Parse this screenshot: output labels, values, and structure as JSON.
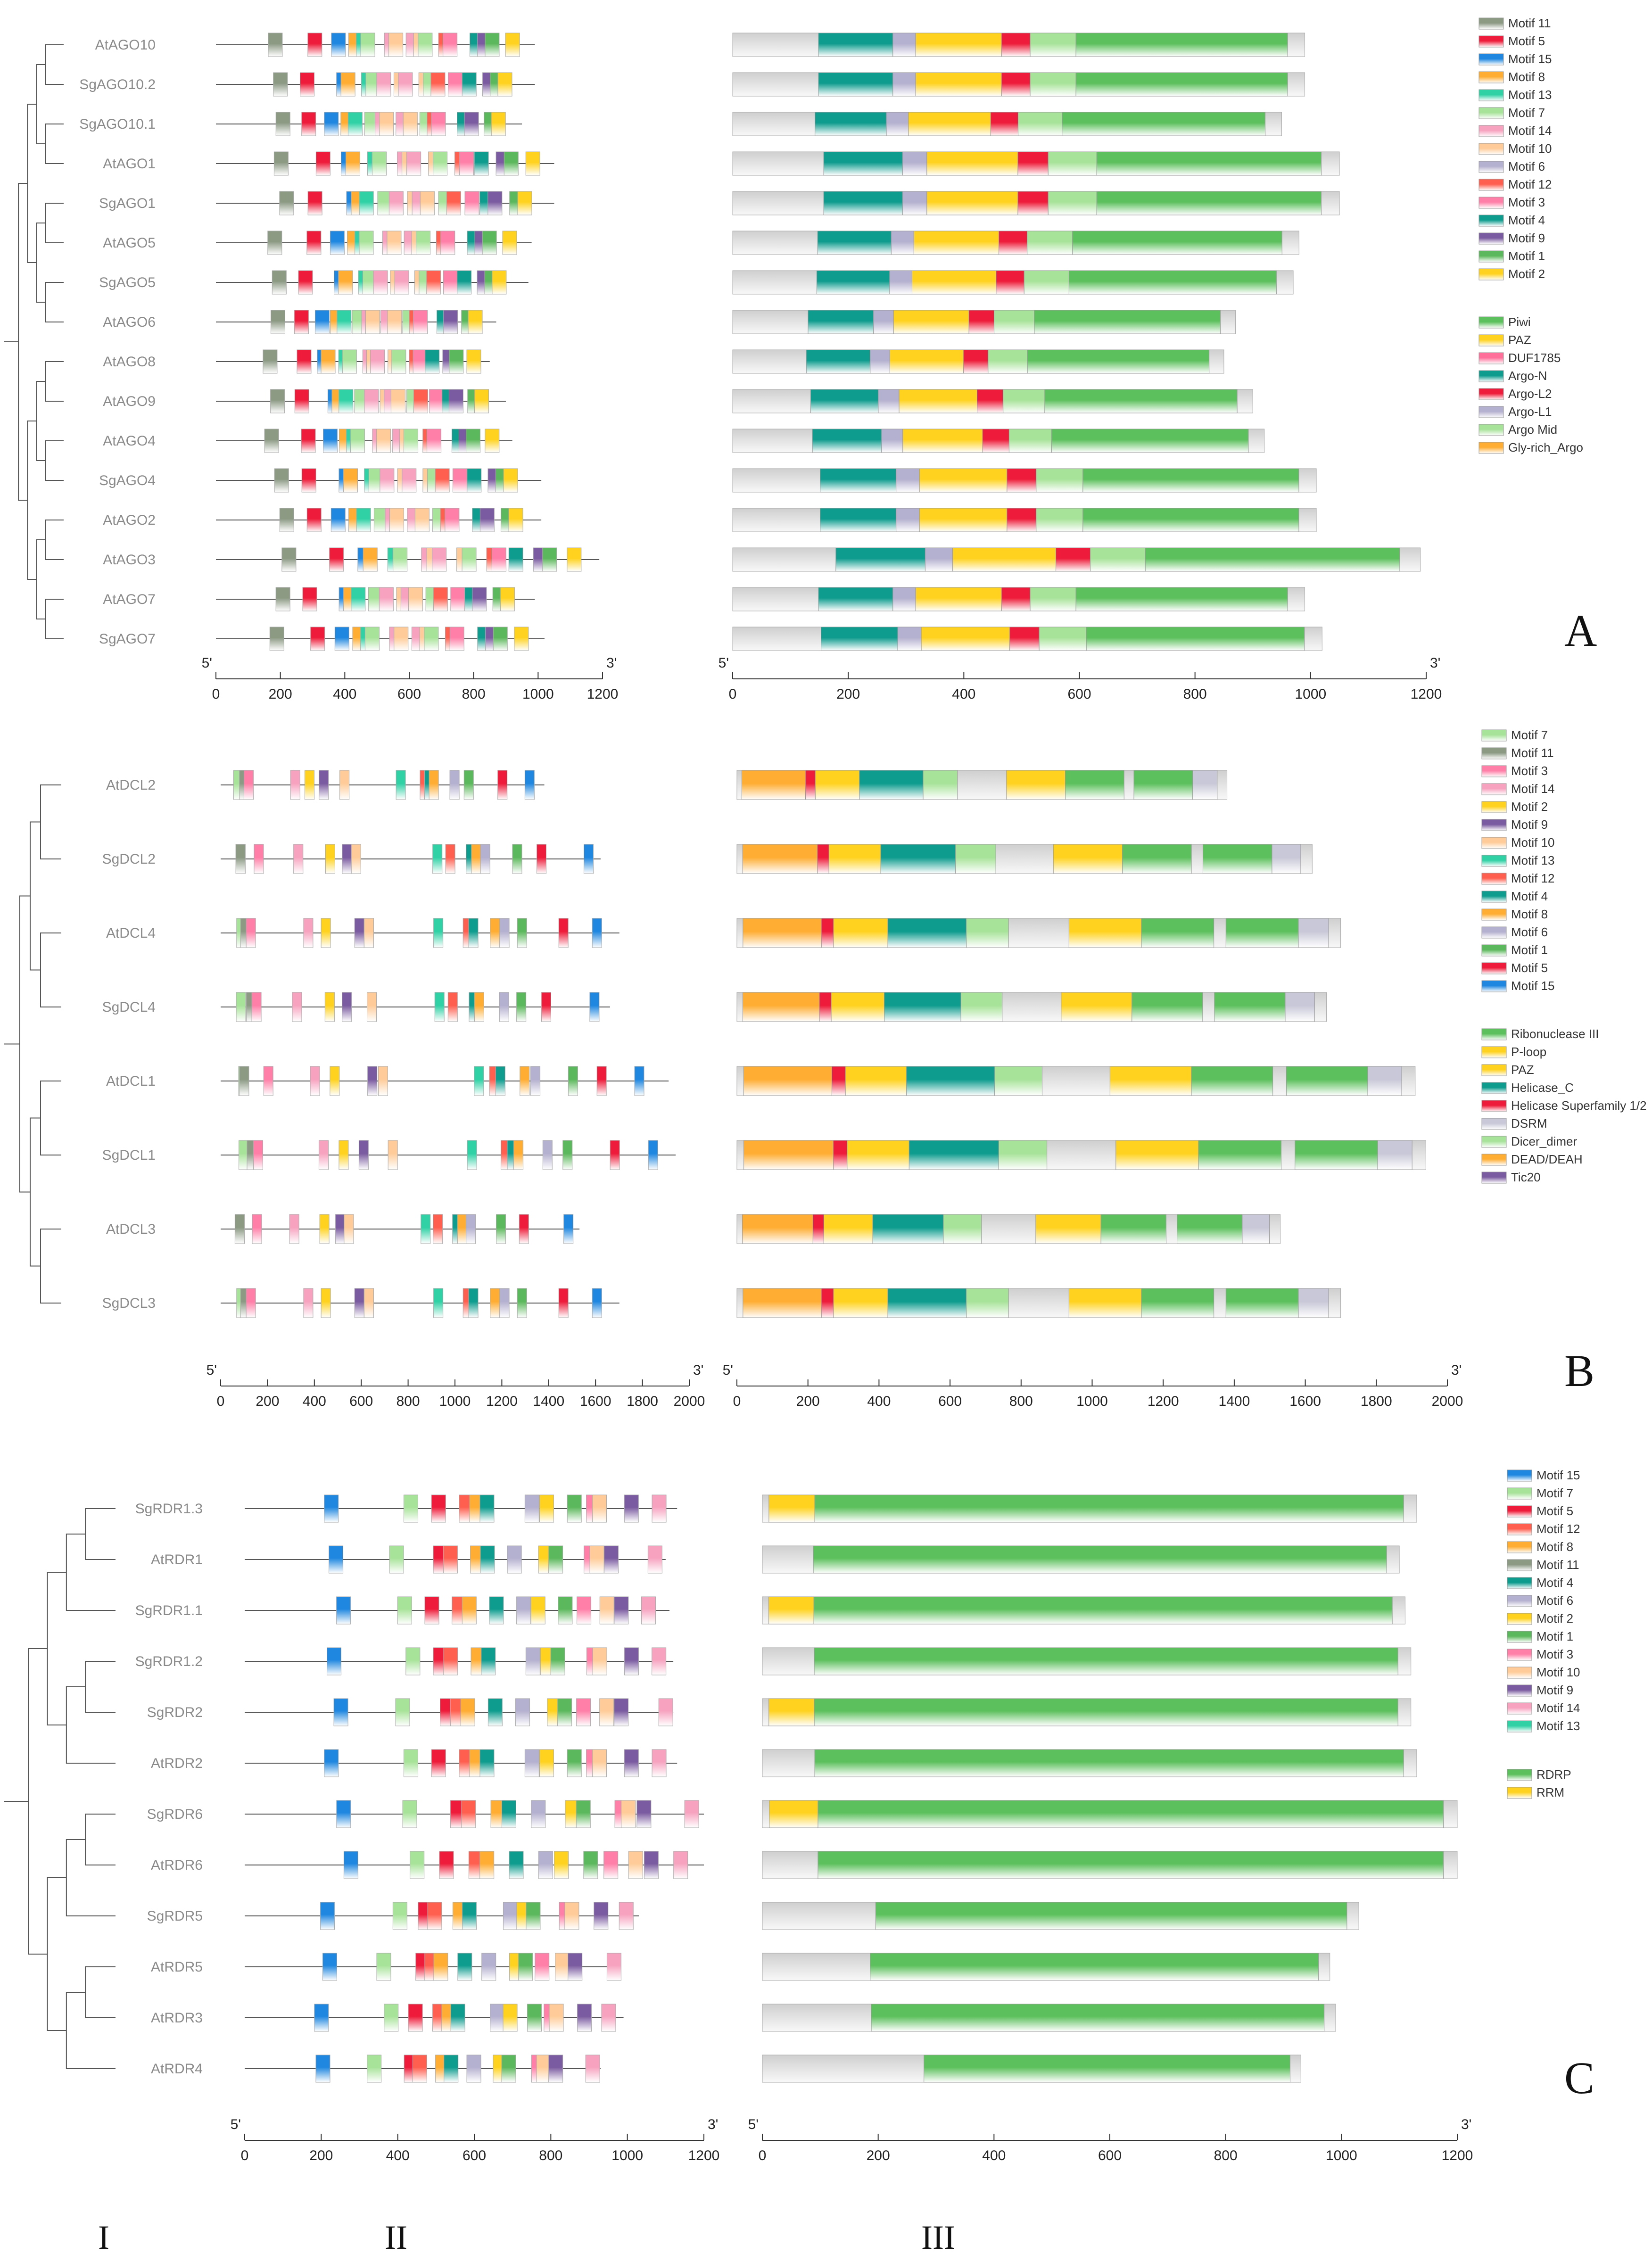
{
  "panels": [
    {
      "letter": "A",
      "genes": [
        "AtAGO10",
        "SgAGO10.2",
        "SgAGO10.1",
        "AtAGO1",
        "SgAGO1",
        "AtAGO5",
        "SgAGO5",
        "AtAGO6",
        "AtAGO8",
        "AtAGO9",
        "AtAGO4",
        "SgAGO4",
        "AtAGO2",
        "AtAGO3",
        "AtAGO7",
        "SgAGO7"
      ],
      "lengths": [
        990,
        990,
        950,
        1050,
        1050,
        980,
        970,
        870,
        850,
        900,
        920,
        1010,
        1010,
        1190,
        990,
        1020
      ],
      "axis_motif": {
        "max": 1200,
        "ticks": [
          "0",
          "200",
          "400",
          "600",
          "800",
          "1000",
          "1200"
        ],
        "start": "5'",
        "end": "3'"
      },
      "axis_domain": {
        "max": 1200,
        "ticks": [
          "0",
          "200",
          "400",
          "600",
          "800",
          "1000",
          "1200"
        ],
        "start": "5'",
        "end": "3'"
      },
      "motif_legend": [
        "Motif 11",
        "Motif 5",
        "Motif 15",
        "Motif 8",
        "Motif 13",
        "Motif 7",
        "Motif 14",
        "Motif 10",
        "Motif 6",
        "Motif 12",
        "Motif 3",
        "Motif 4",
        "Motif 9",
        "Motif 1",
        "Motif 2"
      ],
      "domain_legend": [
        "Piwi",
        "PAZ",
        "DUF1785",
        "Argo-N",
        "Argo-L2",
        "Argo-L1",
        "Argo Mid",
        "Gly-rich_Argo"
      ]
    },
    {
      "letter": "B",
      "genes": [
        "AtDCL2",
        "SgDCL2",
        "AtDCL4",
        "SgDCL4",
        "AtDCL1",
        "SgDCL1",
        "AtDCL3",
        "SgDCL3"
      ],
      "lengths": [
        1380,
        1620,
        1700,
        1660,
        1910,
        1940,
        1530,
        1700
      ],
      "axis_motif": {
        "max": 2000,
        "ticks": [
          "0",
          "200",
          "400",
          "600",
          "800",
          "1000",
          "1200",
          "1400",
          "1600",
          "1800",
          "2000"
        ],
        "start": "5'",
        "end": "3'"
      },
      "axis_domain": {
        "max": 2000,
        "ticks": [
          "0",
          "200",
          "400",
          "600",
          "800",
          "1000",
          "1200",
          "1400",
          "1600",
          "1800",
          "2000"
        ],
        "start": "5'",
        "end": "3'"
      },
      "motif_legend": [
        "Motif 7",
        "Motif 11",
        "Motif 3",
        "Motif 14",
        "Motif 2",
        "Motif 9",
        "Motif 10",
        "Motif 13",
        "Motif 12",
        "Motif 4",
        "Motif 8",
        "Motif 6",
        "Motif 1",
        "Motif 5",
        "Motif 15"
      ],
      "domain_legend": [
        "Ribonuclease III",
        "P-loop",
        "PAZ",
        "Helicase_C",
        "Helicase Superfamily 1/2",
        "DSRM",
        "Dicer_dimer",
        "DEAD/DEAH",
        "Tic20"
      ]
    },
    {
      "letter": "C",
      "genes": [
        "SgRDR1.3",
        "AtRDR1",
        "SgRDR1.1",
        "SgRDR1.2",
        "SgRDR2",
        "AtRDR2",
        "SgRDR6",
        "AtRDR6",
        "SgRDR5",
        "AtRDR5",
        "AtRDR3",
        "AtRDR4"
      ],
      "lengths": [
        1130,
        1100,
        1110,
        1120,
        1120,
        1130,
        1200,
        1200,
        1030,
        980,
        990,
        930
      ],
      "axis_motif": {
        "max": 1200,
        "ticks": [
          "0",
          "200",
          "400",
          "600",
          "800",
          "1000",
          "1200"
        ],
        "start": "5'",
        "end": "3'"
      },
      "axis_domain": {
        "max": 1200,
        "ticks": [
          "0",
          "200",
          "400",
          "600",
          "800",
          "1000",
          "1200"
        ],
        "start": "5'",
        "end": "3'"
      },
      "motif_legend": [
        "Motif 15",
        "Motif 7",
        "Motif 5",
        "Motif 12",
        "Motif 8",
        "Motif 11",
        "Motif 4",
        "Motif 6",
        "Motif 2",
        "Motif 1",
        "Motif 3",
        "Motif 10",
        "Motif 9",
        "Motif 14",
        "Motif 13"
      ],
      "domain_legend": [
        "RDRP",
        "RRM"
      ]
    }
  ],
  "column_labels": [
    "I",
    "II",
    "III"
  ],
  "colors": {
    "Motif 1": "#5cb85c",
    "Motif 2": "#ffd21f",
    "Motif 3": "#ff7fa8",
    "Motif 4": "#0e9c8e",
    "Motif 5": "#ee1c3a",
    "Motif 6": "#b4b0cf",
    "Motif 7": "#a8e39a",
    "Motif 8": "#ffad33",
    "Motif 9": "#7a5aa0",
    "Motif 10": "#ffcc99",
    "Motif 11": "#8c9a84",
    "Motif 12": "#ff5f4f",
    "Motif 13": "#2fd1a5",
    "Motif 14": "#f7a3c0",
    "Motif 15": "#1f87e0",
    "Piwi": "#5cc05c",
    "PAZ": "#ffd21f",
    "DUF1785": "#ff6f9a",
    "Argo-N": "#0e9c8e",
    "Argo-L2": "#ee1c3a",
    "Argo-L1": "#b4b0cf",
    "Argo Mid": "#a8e39a",
    "Gly-rich_Argo": "#ffad33",
    "Ribonuclease III": "#5cc05c",
    "P-loop": "#ffd21f",
    "Helicase_C": "#0e9c8e",
    "Helicase Superfamily 1/2": "#ee1c3a",
    "DSRM": "#c8c8d8",
    "Dicer_dimer": "#a8e39a",
    "DEAD/DEAH": "#ffad33",
    "Tic20": "#7a5aa0",
    "RDRP": "#5cc05c",
    "RRM": "#ffd21f"
  }
}
